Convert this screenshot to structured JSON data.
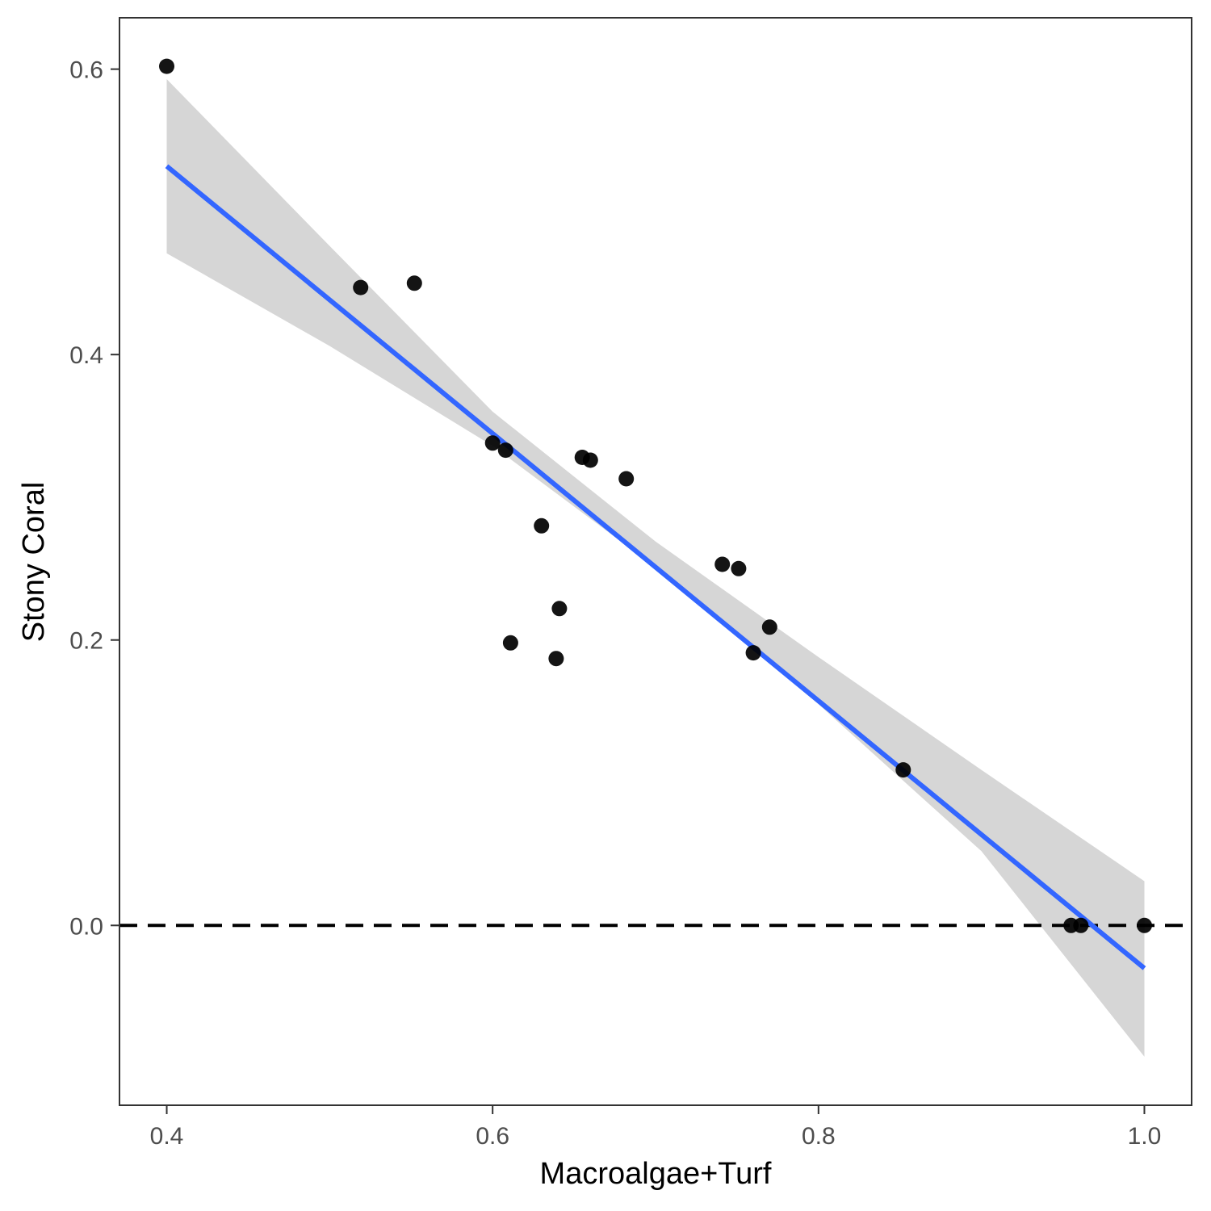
{
  "chart_data": {
    "type": "scatter",
    "xlabel": "Macroalgae+Turf",
    "ylabel": "Stony Coral",
    "xlim": [
      0.371,
      1.029
    ],
    "ylim": [
      -0.126,
      0.636
    ],
    "x_ticks": [
      0.4,
      0.6,
      0.8,
      1.0
    ],
    "x_tick_labels": [
      "0.4",
      "0.6",
      "0.8",
      "1.0"
    ],
    "y_ticks": [
      0.0,
      0.2,
      0.4,
      0.6
    ],
    "y_tick_labels": [
      "0.0",
      "0.2",
      "0.4",
      "0.6"
    ],
    "grid": false,
    "points": [
      {
        "x": 0.4,
        "y": 0.602
      },
      {
        "x": 0.519,
        "y": 0.447
      },
      {
        "x": 0.552,
        "y": 0.45
      },
      {
        "x": 0.6,
        "y": 0.338
      },
      {
        "x": 0.608,
        "y": 0.333
      },
      {
        "x": 0.611,
        "y": 0.198
      },
      {
        "x": 0.63,
        "y": 0.28
      },
      {
        "x": 0.639,
        "y": 0.187
      },
      {
        "x": 0.641,
        "y": 0.222
      },
      {
        "x": 0.655,
        "y": 0.328
      },
      {
        "x": 0.66,
        "y": 0.326
      },
      {
        "x": 0.682,
        "y": 0.313
      },
      {
        "x": 0.741,
        "y": 0.253
      },
      {
        "x": 0.751,
        "y": 0.25
      },
      {
        "x": 0.76,
        "y": 0.191
      },
      {
        "x": 0.77,
        "y": 0.209
      },
      {
        "x": 0.852,
        "y": 0.109
      },
      {
        "x": 0.955,
        "y": 0.0
      },
      {
        "x": 0.961,
        "y": 0.0
      },
      {
        "x": 1.0,
        "y": 0.0
      }
    ],
    "fit_line": {
      "method": "linear",
      "color": "#3366ff",
      "x": [
        0.4,
        1.0
      ],
      "y": [
        0.532,
        -0.03
      ]
    },
    "confidence_band": {
      "color": "#d6d6d6",
      "x": [
        0.4,
        0.5,
        0.6,
        0.7,
        0.8,
        0.9,
        1.0
      ],
      "lower": [
        0.471,
        0.406,
        0.336,
        0.251,
        0.155,
        0.052,
        -0.092
      ],
      "upper": [
        0.593,
        0.476,
        0.36,
        0.269,
        0.188,
        0.109,
        0.031
      ]
    },
    "reference_line": {
      "y": 0.0,
      "style": "dashed",
      "color": "#000000"
    },
    "point_color": "#000000",
    "point_radius_note": "solid black dots"
  }
}
